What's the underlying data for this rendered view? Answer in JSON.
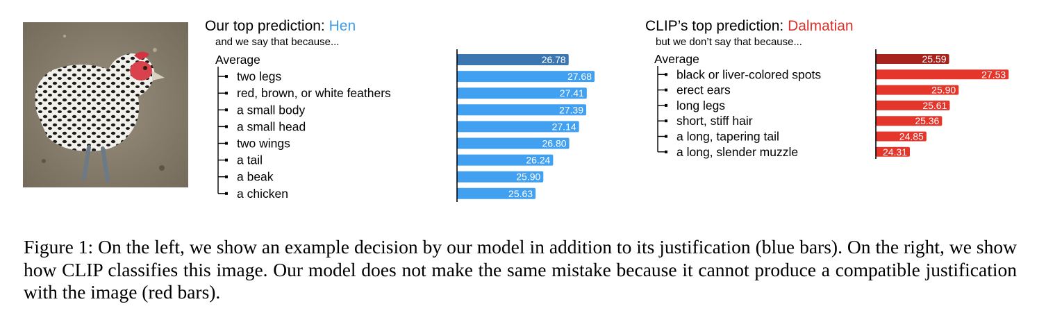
{
  "figure": {
    "image_alt": "black-and-white speckled hen standing on dirt",
    "caption": "Figure 1: On the left, we show an example decision by our model in addition to its justification (blue bars). On the right, we show how CLIP classifies this image. Our model does not make the same mistake because it cannot produce a compatible justification with the image (red bars)."
  },
  "left": {
    "title_prefix": "Our top prediction: ",
    "prediction": "Hen",
    "prediction_color": "#3d9be9",
    "subtitle": "and we say that because...",
    "average_color": "#3b76b0",
    "bar_color": "#42a0f0"
  },
  "right": {
    "title_prefix": "CLIP’s top prediction: ",
    "prediction": "Dalmatian",
    "prediction_color": "#d7322a",
    "subtitle": "but we don’t say that because...",
    "average_color": "#a7231c",
    "bar_color": "#e5362b"
  },
  "chart_data": [
    {
      "type": "bar",
      "orientation": "horizontal",
      "categories": [
        "Average",
        "two legs",
        "red, brown, or white feathers",
        "a small body",
        "a small head",
        "two wings",
        "a tail",
        "a beak",
        "a chicken"
      ],
      "values": [
        26.78,
        27.68,
        27.41,
        27.39,
        27.14,
        26.8,
        26.24,
        25.9,
        25.63
      ],
      "labels": [
        "26.78",
        "27.68",
        "27.41",
        "27.39",
        "27.14",
        "26.80",
        "26.24",
        "25.90",
        "25.63"
      ],
      "xlim": [
        22.9,
        28.5
      ]
    },
    {
      "type": "bar",
      "orientation": "horizontal",
      "categories": [
        "Average",
        "black or liver-colored spots",
        "erect ears",
        "long legs",
        "short, stiff hair",
        "a long, tapering tail",
        "a long, slender muzzle"
      ],
      "values": [
        25.59,
        27.53,
        25.9,
        25.61,
        25.36,
        24.85,
        24.31
      ],
      "labels": [
        "25.59",
        "27.53",
        "25.90",
        "25.61",
        "25.36",
        "24.85",
        "24.31"
      ],
      "xlim": [
        23.2,
        28.5
      ]
    }
  ]
}
